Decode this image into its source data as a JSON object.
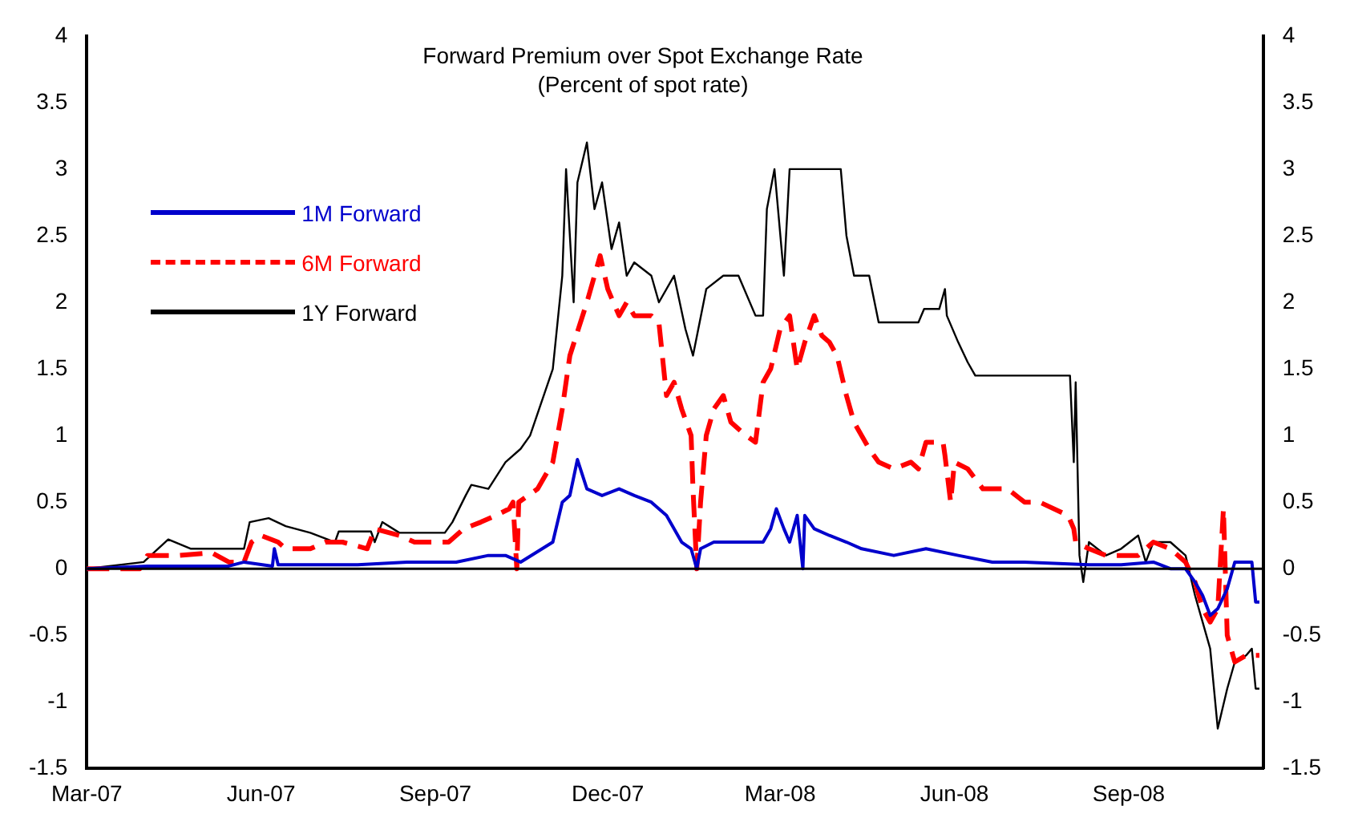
{
  "chart_data": {
    "type": "line",
    "title": "Forward Premium over Spot Exchange Rate",
    "subtitle": "(Percent of spot rate)",
    "xlim": [
      "2007-03-01",
      "2008-11-11"
    ],
    "xticks": [
      {
        "value": "2007-03-01",
        "label": "Mar-07"
      },
      {
        "value": "2007-06-01",
        "label": "Jun-07"
      },
      {
        "value": "2007-09-01",
        "label": "Sep-07"
      },
      {
        "value": "2007-12-01",
        "label": "Dec-07"
      },
      {
        "value": "2008-03-01",
        "label": "Mar-08"
      },
      {
        "value": "2008-06-01",
        "label": "Jun-08"
      },
      {
        "value": "2008-09-01",
        "label": "Sep-08"
      }
    ],
    "ylim": [
      -1.5,
      4
    ],
    "yticks": [
      -1.5,
      -1,
      -0.5,
      0,
      0.5,
      1,
      1.5,
      2,
      2.5,
      3,
      3.5,
      4
    ],
    "y2lim": [
      -1.5,
      4
    ],
    "y2ticks": [
      -1.5,
      -1,
      -0.5,
      0,
      0.5,
      1,
      1.5,
      2,
      2.5,
      3,
      3.5,
      4
    ],
    "grid": false,
    "legend": "top left",
    "marker": "none",
    "ref_lines": [
      {
        "axis": "y",
        "value": 0,
        "color": "#000000"
      }
    ],
    "series": [
      {
        "name": "1M Forward",
        "color": "#0000cc",
        "line_style": "solid",
        "x": [
          "2007-03-01",
          "2007-04-02",
          "2007-05-15",
          "2007-05-23",
          "2007-06-07",
          "2007-06-08",
          "2007-06-10",
          "2007-07-22",
          "2007-08-17",
          "2007-09-12",
          "2007-09-29",
          "2007-10-08",
          "2007-10-16",
          "2007-11-02",
          "2007-11-07",
          "2007-11-11",
          "2007-11-15",
          "2007-11-20",
          "2007-11-28",
          "2007-12-07",
          "2007-12-15",
          "2007-12-24",
          "2008-01-01",
          "2008-01-09",
          "2008-01-14",
          "2008-01-17",
          "2008-01-19",
          "2008-01-26",
          "2008-02-04",
          "2008-02-21",
          "2008-02-25",
          "2008-02-28",
          "2008-03-03",
          "2008-03-06",
          "2008-03-10",
          "2008-03-13",
          "2008-03-14",
          "2008-03-19",
          "2008-03-27",
          "2008-04-05",
          "2008-04-13",
          "2008-04-30",
          "2008-05-17",
          "2008-06-03",
          "2008-06-21",
          "2008-07-08",
          "2008-08-11",
          "2008-08-28",
          "2008-09-14",
          "2008-09-23",
          "2008-10-01",
          "2008-10-06",
          "2008-10-10",
          "2008-10-14",
          "2008-10-18",
          "2008-10-23",
          "2008-10-27",
          "2008-11-05",
          "2008-11-07",
          "2008-11-09"
        ],
        "values": [
          0,
          0.02,
          0.02,
          0.05,
          0.02,
          0.15,
          0.03,
          0.03,
          0.05,
          0.05,
          0.1,
          0.1,
          0.05,
          0.2,
          0.5,
          0.55,
          0.82,
          0.6,
          0.55,
          0.6,
          0.55,
          0.5,
          0.4,
          0.2,
          0.15,
          0,
          0.15,
          0.2,
          0.2,
          0.2,
          0.3,
          0.45,
          0.3,
          0.2,
          0.4,
          0,
          0.4,
          0.3,
          0.25,
          0.2,
          0.15,
          0.1,
          0.15,
          0.1,
          0.05,
          0.05,
          0.03,
          0.03,
          0.05,
          0,
          0,
          -0.1,
          -0.2,
          -0.35,
          -0.3,
          -0.15,
          0.05,
          0.05,
          -0.25,
          -0.25
        ]
      },
      {
        "name": "6M Forward",
        "color": "#ff0000",
        "line_style": "dashed",
        "x": [
          "2007-03-01",
          "2007-03-29",
          "2007-04-02",
          "2007-04-19",
          "2007-05-06",
          "2007-05-15",
          "2007-05-23",
          "2007-05-27",
          "2007-06-01",
          "2007-06-10",
          "2007-06-14",
          "2007-06-27",
          "2007-07-05",
          "2007-07-14",
          "2007-07-27",
          "2007-07-31",
          "2007-08-13",
          "2007-08-21",
          "2007-08-30",
          "2007-09-08",
          "2007-09-16",
          "2007-09-25",
          "2007-10-03",
          "2007-10-10",
          "2007-10-12",
          "2007-10-14",
          "2007-10-15",
          "2007-10-25",
          "2007-11-02",
          "2007-11-07",
          "2007-11-11",
          "2007-11-20",
          "2007-11-27",
          "2007-12-01",
          "2007-12-07",
          "2007-12-11",
          "2007-12-15",
          "2007-12-24",
          "2007-12-28",
          "2008-01-01",
          "2008-01-05",
          "2008-01-09",
          "2008-01-14",
          "2008-01-15",
          "2008-01-17",
          "2008-01-19",
          "2008-01-22",
          "2008-01-26",
          "2008-01-31",
          "2008-02-04",
          "2008-02-12",
          "2008-02-17",
          "2008-02-21",
          "2008-02-25",
          "2008-03-01",
          "2008-03-06",
          "2008-03-10",
          "2008-03-14",
          "2008-03-19",
          "2008-03-23",
          "2008-03-27",
          "2008-03-31",
          "2008-04-05",
          "2008-04-09",
          "2008-04-17",
          "2008-04-22",
          "2008-04-30",
          "2008-05-09",
          "2008-05-13",
          "2008-05-17",
          "2008-05-26",
          "2008-05-27",
          "2008-05-30",
          "2008-06-01",
          "2008-06-08",
          "2008-06-16",
          "2008-06-29",
          "2008-07-08",
          "2008-07-16",
          "2008-07-31",
          "2008-08-03",
          "2008-08-04",
          "2008-08-11",
          "2008-08-20",
          "2008-08-28",
          "2008-09-06",
          "2008-09-14",
          "2008-09-23",
          "2008-10-01",
          "2008-10-06",
          "2008-10-10",
          "2008-10-14",
          "2008-10-18",
          "2008-10-21",
          "2008-10-23",
          "2008-10-27",
          "2008-11-02",
          "2008-11-09"
        ],
        "values": [
          0,
          0,
          0.1,
          0.1,
          0.12,
          0.05,
          0.05,
          0.2,
          0.25,
          0.2,
          0.15,
          0.15,
          0.2,
          0.2,
          0.15,
          0.3,
          0.25,
          0.2,
          0.2,
          0.2,
          0.3,
          0.35,
          0.4,
          0.45,
          0.5,
          0,
          0.5,
          0.6,
          0.8,
          1.2,
          1.6,
          2.0,
          2.35,
          2.1,
          1.9,
          2.0,
          1.9,
          1.9,
          1.85,
          1.3,
          1.4,
          1.2,
          1.0,
          0.6,
          0,
          0.5,
          1.0,
          1.2,
          1.3,
          1.1,
          1.0,
          0.95,
          1.4,
          1.5,
          1.8,
          1.9,
          1.5,
          1.7,
          1.9,
          1.75,
          1.7,
          1.6,
          1.3,
          1.1,
          0.9,
          0.8,
          0.75,
          0.8,
          0.75,
          0.95,
          0.95,
          0.85,
          0.5,
          0.8,
          0.75,
          0.6,
          0.6,
          0.5,
          0.5,
          0.4,
          0.3,
          0.2,
          0.15,
          0.1,
          0.1,
          0.1,
          0.2,
          0.15,
          0.05,
          -0.1,
          -0.3,
          -0.4,
          -0.3,
          0.45,
          -0.5,
          -0.7,
          -0.65,
          -0.65
        ]
      },
      {
        "name": "1Y Forward",
        "color": "#000000",
        "line_style": "solid",
        "x": [
          "2007-03-01",
          "2007-03-31",
          "2007-04-13",
          "2007-04-25",
          "2007-05-23",
          "2007-05-26",
          "2007-06-05",
          "2007-06-14",
          "2007-06-27",
          "2007-07-10",
          "2007-07-12",
          "2007-07-29",
          "2007-07-31",
          "2007-08-04",
          "2007-08-13",
          "2007-09-06",
          "2007-09-10",
          "2007-09-17",
          "2007-09-20",
          "2007-09-29",
          "2007-10-08",
          "2007-10-16",
          "2007-10-21",
          "2007-11-02",
          "2007-11-07",
          "2007-11-09",
          "2007-11-13",
          "2007-11-15",
          "2007-11-20",
          "2007-11-24",
          "2007-11-28",
          "2007-12-03",
          "2007-12-07",
          "2007-12-11",
          "2007-12-15",
          "2007-12-24",
          "2007-12-28",
          "2008-01-05",
          "2008-01-11",
          "2008-01-15",
          "2008-01-22",
          "2008-01-31",
          "2008-02-08",
          "2008-02-17",
          "2008-02-21",
          "2008-02-23",
          "2008-02-27",
          "2008-03-03",
          "2008-03-06",
          "2008-03-19",
          "2008-04-02",
          "2008-04-05",
          "2008-04-09",
          "2008-04-17",
          "2008-04-22",
          "2008-04-30",
          "2008-05-13",
          "2008-05-16",
          "2008-05-24",
          "2008-05-27",
          "2008-05-28",
          "2008-06-03",
          "2008-06-08",
          "2008-06-12",
          "2008-07-08",
          "2008-08-01",
          "2008-08-03",
          "2008-08-04",
          "2008-08-06",
          "2008-08-08",
          "2008-08-11",
          "2008-08-20",
          "2008-08-28",
          "2008-09-06",
          "2008-09-10",
          "2008-09-14",
          "2008-09-23",
          "2008-10-01",
          "2008-10-06",
          "2008-10-10",
          "2008-10-14",
          "2008-10-18",
          "2008-10-23",
          "2008-10-27",
          "2008-11-02",
          "2008-11-05",
          "2008-11-07",
          "2008-11-09"
        ],
        "values": [
          0,
          0.05,
          0.22,
          0.15,
          0.15,
          0.35,
          0.38,
          0.32,
          0.27,
          0.2,
          0.28,
          0.28,
          0.2,
          0.35,
          0.27,
          0.27,
          0.35,
          0.55,
          0.63,
          0.6,
          0.8,
          0.9,
          1.0,
          1.5,
          2.2,
          3.0,
          2.0,
          2.9,
          3.2,
          2.7,
          2.9,
          2.4,
          2.6,
          2.2,
          2.3,
          2.2,
          2.0,
          2.2,
          1.8,
          1.6,
          2.1,
          2.2,
          2.2,
          1.9,
          1.9,
          2.7,
          3.0,
          2.2,
          3.0,
          3.0,
          3.0,
          2.5,
          2.2,
          2.2,
          1.85,
          1.85,
          1.85,
          1.95,
          1.95,
          2.1,
          1.9,
          1.7,
          1.55,
          1.45,
          1.45,
          1.45,
          0.8,
          1.4,
          0.1,
          -0.1,
          0.2,
          0.1,
          0.15,
          0.25,
          0.05,
          0.2,
          0.2,
          0.1,
          -0.2,
          -0.4,
          -0.6,
          -1.2,
          -0.9,
          -0.7,
          -0.65,
          -0.6,
          -0.9,
          -0.9
        ]
      }
    ]
  }
}
